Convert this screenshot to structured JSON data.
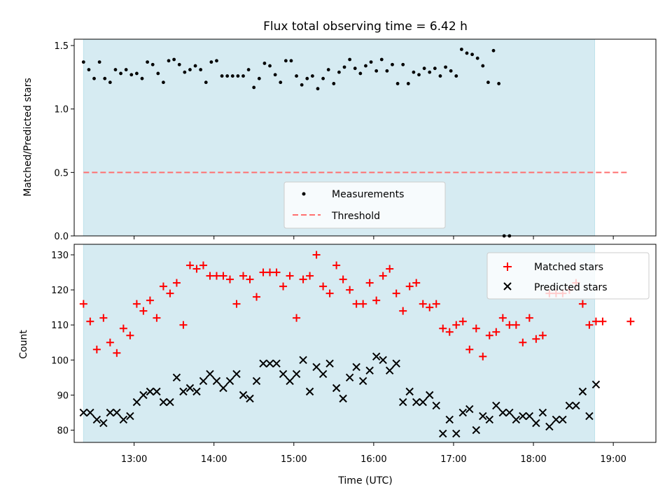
{
  "chart_data": [
    {
      "type": "scatter",
      "title": "Flux total observing time = 6.42 h",
      "xlabel": "",
      "ylabel": "Matched/Predicted stars",
      "xlim": [
        "12:15",
        "19:32"
      ],
      "ylim": [
        0,
        1.55
      ],
      "y_ticks": [
        "0.0",
        "0.5",
        "1.0",
        "1.5"
      ],
      "grid": false,
      "legend_position": "bottom-center",
      "shaded_interval": {
        "from": "12:22",
        "to": "18:46",
        "color": "#add8e6"
      },
      "series": [
        {
          "name": "Measurements",
          "marker": "dot",
          "color": "#000000",
          "points": [
            [
              "12:22",
              1.37
            ],
            [
              "12:26",
              1.31
            ],
            [
              "12:30",
              1.24
            ],
            [
              "12:34",
              1.37
            ],
            [
              "12:38",
              1.24
            ],
            [
              "12:42",
              1.21
            ],
            [
              "12:46",
              1.31
            ],
            [
              "12:50",
              1.28
            ],
            [
              "12:54",
              1.31
            ],
            [
              "12:58",
              1.27
            ],
            [
              "13:02",
              1.28
            ],
            [
              "13:06",
              1.24
            ],
            [
              "13:10",
              1.37
            ],
            [
              "13:14",
              1.35
            ],
            [
              "13:18",
              1.28
            ],
            [
              "13:22",
              1.21
            ],
            [
              "13:26",
              1.38
            ],
            [
              "13:30",
              1.39
            ],
            [
              "13:34",
              1.35
            ],
            [
              "13:38",
              1.29
            ],
            [
              "13:42",
              1.31
            ],
            [
              "13:46",
              1.34
            ],
            [
              "13:50",
              1.31
            ],
            [
              "13:54",
              1.21
            ],
            [
              "13:58",
              1.37
            ],
            [
              "14:02",
              1.38
            ],
            [
              "14:06",
              1.26
            ],
            [
              "14:10",
              1.26
            ],
            [
              "14:14",
              1.26
            ],
            [
              "14:18",
              1.26
            ],
            [
              "14:22",
              1.26
            ],
            [
              "14:26",
              1.31
            ],
            [
              "14:30",
              1.17
            ],
            [
              "14:34",
              1.24
            ],
            [
              "14:38",
              1.36
            ],
            [
              "14:42",
              1.34
            ],
            [
              "14:46",
              1.27
            ],
            [
              "14:50",
              1.21
            ],
            [
              "14:54",
              1.38
            ],
            [
              "14:58",
              1.38
            ],
            [
              "15:02",
              1.26
            ],
            [
              "15:06",
              1.19
            ],
            [
              "15:10",
              1.24
            ],
            [
              "15:14",
              1.26
            ],
            [
              "15:18",
              1.16
            ],
            [
              "15:22",
              1.24
            ],
            [
              "15:26",
              1.31
            ],
            [
              "15:30",
              1.2
            ],
            [
              "15:34",
              1.29
            ],
            [
              "15:38",
              1.33
            ],
            [
              "15:42",
              1.39
            ],
            [
              "15:46",
              1.32
            ],
            [
              "15:50",
              1.28
            ],
            [
              "15:54",
              1.34
            ],
            [
              "15:58",
              1.37
            ],
            [
              "16:02",
              1.3
            ],
            [
              "16:06",
              1.39
            ],
            [
              "16:10",
              1.3
            ],
            [
              "16:14",
              1.35
            ],
            [
              "16:18",
              1.2
            ],
            [
              "16:22",
              1.35
            ],
            [
              "16:26",
              1.2
            ],
            [
              "16:30",
              1.29
            ],
            [
              "16:34",
              1.27
            ],
            [
              "16:38",
              1.32
            ],
            [
              "16:42",
              1.29
            ],
            [
              "16:46",
              1.32
            ],
            [
              "16:50",
              1.26
            ],
            [
              "16:54",
              1.33
            ],
            [
              "16:58",
              1.3
            ],
            [
              "17:02",
              1.26
            ],
            [
              "17:06",
              1.47
            ],
            [
              "17:10",
              1.44
            ],
            [
              "17:14",
              1.43
            ],
            [
              "17:18",
              1.4
            ],
            [
              "17:22",
              1.34
            ],
            [
              "17:26",
              1.21
            ],
            [
              "17:30",
              1.46
            ],
            [
              "17:34",
              1.2
            ],
            [
              "17:38",
              0.0
            ],
            [
              "17:42",
              0.0
            ]
          ]
        },
        {
          "name": "Threshold",
          "line_style": "dashed",
          "color": "#ff7070",
          "value": 0.5,
          "x_range": [
            "12:22",
            "19:12"
          ]
        }
      ]
    },
    {
      "type": "scatter",
      "title": "",
      "xlabel": "Time (UTC)",
      "ylabel": "Count",
      "xlim": [
        "12:15",
        "19:32"
      ],
      "ylim": [
        76.5,
        133
      ],
      "y_ticks": [
        "80",
        "90",
        "100",
        "110",
        "120",
        "130"
      ],
      "x_ticks": [
        "13:00",
        "14:00",
        "15:00",
        "16:00",
        "17:00",
        "18:00",
        "19:00"
      ],
      "grid": false,
      "legend_position": "top-right",
      "shaded_interval": {
        "from": "12:22",
        "to": "18:46",
        "color": "#add8e6"
      },
      "series": [
        {
          "name": "Matched stars",
          "marker": "plus",
          "color": "#ff0000",
          "points": [
            [
              "12:22",
              116
            ],
            [
              "12:27",
              111
            ],
            [
              "12:32",
              103
            ],
            [
              "12:37",
              112
            ],
            [
              "12:42",
              105
            ],
            [
              "12:47",
              102
            ],
            [
              "12:52",
              109
            ],
            [
              "12:57",
              107
            ],
            [
              "13:02",
              116
            ],
            [
              "13:07",
              114
            ],
            [
              "13:12",
              117
            ],
            [
              "13:17",
              112
            ],
            [
              "13:22",
              121
            ],
            [
              "13:27",
              119
            ],
            [
              "13:32",
              122
            ],
            [
              "13:37",
              110
            ],
            [
              "13:42",
              127
            ],
            [
              "13:47",
              126
            ],
            [
              "13:52",
              127
            ],
            [
              "13:57",
              124
            ],
            [
              "14:02",
              124
            ],
            [
              "14:07",
              124
            ],
            [
              "14:12",
              123
            ],
            [
              "14:17",
              116
            ],
            [
              "14:22",
              124
            ],
            [
              "14:27",
              123
            ],
            [
              "14:32",
              118
            ],
            [
              "14:37",
              125
            ],
            [
              "14:42",
              125
            ],
            [
              "14:47",
              125
            ],
            [
              "14:52",
              121
            ],
            [
              "14:57",
              124
            ],
            [
              "15:02",
              112
            ],
            [
              "15:07",
              123
            ],
            [
              "15:12",
              124
            ],
            [
              "15:17",
              130
            ],
            [
              "15:22",
              121
            ],
            [
              "15:27",
              119
            ],
            [
              "15:32",
              127
            ],
            [
              "15:37",
              123
            ],
            [
              "15:42",
              120
            ],
            [
              "15:47",
              116
            ],
            [
              "15:52",
              116
            ],
            [
              "15:57",
              122
            ],
            [
              "16:02",
              117
            ],
            [
              "16:07",
              124
            ],
            [
              "16:12",
              126
            ],
            [
              "16:17",
              119
            ],
            [
              "16:22",
              114
            ],
            [
              "16:27",
              121
            ],
            [
              "16:32",
              122
            ],
            [
              "16:37",
              116
            ],
            [
              "16:42",
              115
            ],
            [
              "16:47",
              116
            ],
            [
              "16:52",
              109
            ],
            [
              "16:57",
              108
            ],
            [
              "17:02",
              110
            ],
            [
              "17:07",
              111
            ],
            [
              "17:12",
              103
            ],
            [
              "17:17",
              109
            ],
            [
              "17:22",
              101
            ],
            [
              "17:27",
              107
            ],
            [
              "17:32",
              108
            ],
            [
              "17:37",
              112
            ],
            [
              "17:42",
              110
            ],
            [
              "17:47",
              110
            ],
            [
              "17:52",
              105
            ],
            [
              "17:57",
              112
            ],
            [
              "18:02",
              106
            ],
            [
              "18:07",
              107
            ],
            [
              "18:12",
              119
            ],
            [
              "18:17",
              119
            ],
            [
              "18:22",
              119
            ],
            [
              "18:27",
              120
            ],
            [
              "18:32",
              122
            ],
            [
              "18:37",
              116
            ],
            [
              "18:42",
              110
            ],
            [
              "18:47",
              111
            ],
            [
              "18:52",
              111
            ],
            [
              "19:13",
              111
            ]
          ]
        },
        {
          "name": "Predicted stars",
          "marker": "x",
          "color": "#000000",
          "points": [
            [
              "12:22",
              85
            ],
            [
              "12:27",
              85
            ],
            [
              "12:32",
              83
            ],
            [
              "12:37",
              82
            ],
            [
              "12:42",
              85
            ],
            [
              "12:47",
              85
            ],
            [
              "12:52",
              83
            ],
            [
              "12:57",
              84
            ],
            [
              "13:02",
              88
            ],
            [
              "13:07",
              90
            ],
            [
              "13:12",
              91
            ],
            [
              "13:17",
              91
            ],
            [
              "13:22",
              88
            ],
            [
              "13:27",
              88
            ],
            [
              "13:32",
              95
            ],
            [
              "13:37",
              91
            ],
            [
              "13:42",
              92
            ],
            [
              "13:47",
              91
            ],
            [
              "13:52",
              94
            ],
            [
              "13:57",
              96
            ],
            [
              "14:02",
              94
            ],
            [
              "14:07",
              92
            ],
            [
              "14:12",
              94
            ],
            [
              "14:17",
              96
            ],
            [
              "14:22",
              90
            ],
            [
              "14:27",
              89
            ],
            [
              "14:32",
              94
            ],
            [
              "14:37",
              99
            ],
            [
              "14:42",
              99
            ],
            [
              "14:47",
              99
            ],
            [
              "14:52",
              96
            ],
            [
              "14:57",
              94
            ],
            [
              "15:02",
              96
            ],
            [
              "15:07",
              100
            ],
            [
              "15:12",
              91
            ],
            [
              "15:17",
              98
            ],
            [
              "15:22",
              96
            ],
            [
              "15:27",
              99
            ],
            [
              "15:32",
              92
            ],
            [
              "15:37",
              89
            ],
            [
              "15:42",
              95
            ],
            [
              "15:47",
              98
            ],
            [
              "15:52",
              94
            ],
            [
              "15:57",
              97
            ],
            [
              "16:02",
              101
            ],
            [
              "16:07",
              100
            ],
            [
              "16:12",
              97
            ],
            [
              "16:17",
              99
            ],
            [
              "16:22",
              88
            ],
            [
              "16:27",
              91
            ],
            [
              "16:32",
              88
            ],
            [
              "16:37",
              88
            ],
            [
              "16:42",
              90
            ],
            [
              "16:47",
              87
            ],
            [
              "16:52",
              79
            ],
            [
              "16:57",
              83
            ],
            [
              "17:02",
              79
            ],
            [
              "17:07",
              85
            ],
            [
              "17:12",
              86
            ],
            [
              "17:17",
              80
            ],
            [
              "17:22",
              84
            ],
            [
              "17:27",
              83
            ],
            [
              "17:32",
              87
            ],
            [
              "17:37",
              85
            ],
            [
              "17:42",
              85
            ],
            [
              "17:47",
              83
            ],
            [
              "17:52",
              84
            ],
            [
              "17:57",
              84
            ],
            [
              "18:02",
              82
            ],
            [
              "18:07",
              85
            ],
            [
              "18:12",
              81
            ],
            [
              "18:17",
              83
            ],
            [
              "18:22",
              83
            ],
            [
              "18:27",
              87
            ],
            [
              "18:32",
              87
            ],
            [
              "18:37",
              91
            ],
            [
              "18:42",
              84
            ],
            [
              "18:47",
              93
            ]
          ]
        }
      ]
    }
  ]
}
